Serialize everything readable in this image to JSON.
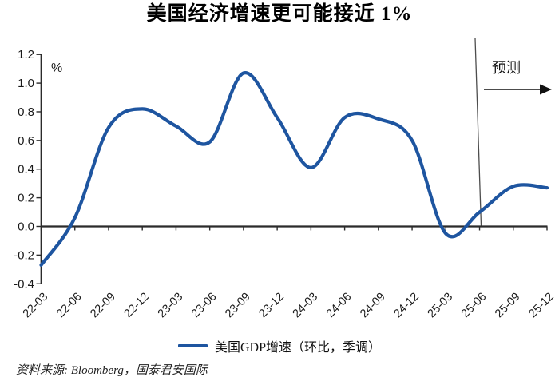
{
  "title": "美国经济增速更可能接近 1%",
  "chart_data": {
    "type": "line",
    "title": "美国经济增速更可能接近 1%",
    "x": [
      "22-03",
      "22-06",
      "22-09",
      "22-12",
      "23-03",
      "23-06",
      "23-09",
      "23-12",
      "24-03",
      "24-06",
      "24-09",
      "24-12",
      "25-03",
      "25-06",
      "25-09",
      "25-12"
    ],
    "series": [
      {
        "name": "美国GDP增速（环比，季调）",
        "values": [
          -0.27,
          0.06,
          0.69,
          0.82,
          0.7,
          0.59,
          1.07,
          0.76,
          0.41,
          0.76,
          0.75,
          0.6,
          -0.05,
          0.1,
          0.28,
          0.27
        ]
      }
    ],
    "ylabel": "%",
    "ylim": [
      -0.4,
      1.2
    ],
    "yticks": [
      "1.2",
      "1.0",
      "0.8",
      "0.6",
      "0.4",
      "0.2",
      "0.0",
      "-0.2",
      "-0.4"
    ],
    "grid": false,
    "smoothed": true,
    "legend_position": "bottom",
    "forecast": {
      "label": "预测",
      "starts_at": "25-06"
    }
  },
  "legend": {
    "label": "美国GDP增速（环比，季调）"
  },
  "source": "资料来源: Bloomberg，国泰君安国际",
  "colors": {
    "line": "#1e55a0",
    "axis": "#2b2b2b",
    "tick_text": "#1a1a1a",
    "forecast_line": "#4d4d4d",
    "arrow": "#111111"
  }
}
